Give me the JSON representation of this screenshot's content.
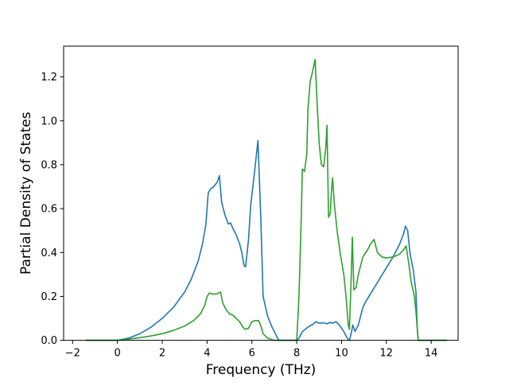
{
  "chart_data": {
    "type": "line",
    "title": "",
    "xlabel": "Frequency (THz)",
    "ylabel": "Partial Density of States",
    "xlim": [
      -2.4,
      15.2
    ],
    "ylim": [
      0,
      1.34
    ],
    "xticks": [
      -2,
      0,
      2,
      4,
      6,
      8,
      10,
      12,
      14
    ],
    "yticks": [
      0.0,
      0.2,
      0.4,
      0.6,
      0.8,
      1.0,
      1.2
    ],
    "xtick_labels": [
      "−2",
      "0",
      "2",
      "4",
      "6",
      "8",
      "10",
      "12",
      "14"
    ],
    "ytick_labels": [
      "0.0",
      "0.2",
      "0.4",
      "0.6",
      "0.8",
      "1.0",
      "1.2"
    ],
    "grid": false,
    "legend": "none",
    "series": [
      {
        "color": "#1f77b4",
        "points": [
          [
            -1.4,
            0
          ],
          [
            0.0,
            0
          ],
          [
            0.5,
            0.01
          ],
          [
            1.0,
            0.03
          ],
          [
            1.5,
            0.06
          ],
          [
            2.0,
            0.1
          ],
          [
            2.5,
            0.15
          ],
          [
            3.0,
            0.22
          ],
          [
            3.3,
            0.28
          ],
          [
            3.6,
            0.36
          ],
          [
            3.8,
            0.44
          ],
          [
            3.95,
            0.53
          ],
          [
            4.05,
            0.67
          ],
          [
            4.15,
            0.69
          ],
          [
            4.3,
            0.7
          ],
          [
            4.45,
            0.72
          ],
          [
            4.55,
            0.75
          ],
          [
            4.65,
            0.63
          ],
          [
            4.8,
            0.57
          ],
          [
            4.95,
            0.53
          ],
          [
            5.05,
            0.535
          ],
          [
            5.15,
            0.51
          ],
          [
            5.3,
            0.48
          ],
          [
            5.45,
            0.44
          ],
          [
            5.55,
            0.4
          ],
          [
            5.65,
            0.34
          ],
          [
            5.72,
            0.335
          ],
          [
            5.85,
            0.46
          ],
          [
            5.95,
            0.62
          ],
          [
            6.1,
            0.75
          ],
          [
            6.27,
            0.91
          ],
          [
            6.4,
            0.55
          ],
          [
            6.5,
            0.2
          ],
          [
            6.7,
            0.11
          ],
          [
            6.9,
            0.06
          ],
          [
            7.1,
            0.02
          ],
          [
            7.2,
            0
          ],
          [
            8.0,
            0
          ],
          [
            8.1,
            0.01
          ],
          [
            8.25,
            0.04
          ],
          [
            8.5,
            0.06
          ],
          [
            8.75,
            0.075
          ],
          [
            8.85,
            0.085
          ],
          [
            9.0,
            0.078
          ],
          [
            9.2,
            0.08
          ],
          [
            9.35,
            0.075
          ],
          [
            9.5,
            0.082
          ],
          [
            9.6,
            0.078
          ],
          [
            9.75,
            0.085
          ],
          [
            9.9,
            0.07
          ],
          [
            10.1,
            0.04
          ],
          [
            10.25,
            0.01
          ],
          [
            10.35,
            0.0
          ],
          [
            10.45,
            0.04
          ],
          [
            10.5,
            0.07
          ],
          [
            10.6,
            0.04
          ],
          [
            10.75,
            0.07
          ],
          [
            10.95,
            0.15
          ],
          [
            11.1,
            0.18
          ],
          [
            11.4,
            0.23
          ],
          [
            11.7,
            0.28
          ],
          [
            12.0,
            0.33
          ],
          [
            12.3,
            0.38
          ],
          [
            12.6,
            0.44
          ],
          [
            12.78,
            0.49
          ],
          [
            12.85,
            0.52
          ],
          [
            12.95,
            0.5
          ],
          [
            13.05,
            0.4
          ],
          [
            13.2,
            0.32
          ],
          [
            13.32,
            0.22
          ],
          [
            13.38,
            0.05
          ],
          [
            13.42,
            0
          ],
          [
            14.7,
            0
          ]
        ]
      },
      {
        "color": "#2ca02c",
        "points": [
          [
            -1.4,
            0
          ],
          [
            0.0,
            0
          ],
          [
            0.5,
            0.005
          ],
          [
            1.0,
            0.012
          ],
          [
            1.5,
            0.02
          ],
          [
            2.0,
            0.03
          ],
          [
            2.5,
            0.045
          ],
          [
            3.0,
            0.065
          ],
          [
            3.4,
            0.09
          ],
          [
            3.7,
            0.12
          ],
          [
            3.9,
            0.16
          ],
          [
            4.0,
            0.2
          ],
          [
            4.1,
            0.215
          ],
          [
            4.3,
            0.21
          ],
          [
            4.45,
            0.212
          ],
          [
            4.6,
            0.22
          ],
          [
            4.7,
            0.17
          ],
          [
            4.85,
            0.14
          ],
          [
            5.0,
            0.12
          ],
          [
            5.15,
            0.115
          ],
          [
            5.3,
            0.1
          ],
          [
            5.45,
            0.085
          ],
          [
            5.6,
            0.06
          ],
          [
            5.7,
            0.05
          ],
          [
            5.85,
            0.055
          ],
          [
            6.0,
            0.085
          ],
          [
            6.15,
            0.09
          ],
          [
            6.3,
            0.09
          ],
          [
            6.4,
            0.065
          ],
          [
            6.5,
            0.03
          ],
          [
            6.7,
            0.01
          ],
          [
            7.0,
            0
          ],
          [
            8.0,
            0
          ],
          [
            8.1,
            0.2
          ],
          [
            8.2,
            0.55
          ],
          [
            8.25,
            0.78
          ],
          [
            8.35,
            0.77
          ],
          [
            8.45,
            0.85
          ],
          [
            8.5,
            1.05
          ],
          [
            8.6,
            1.18
          ],
          [
            8.7,
            1.22
          ],
          [
            8.82,
            1.28
          ],
          [
            8.9,
            1.1
          ],
          [
            9.0,
            0.9
          ],
          [
            9.1,
            0.8
          ],
          [
            9.2,
            0.79
          ],
          [
            9.3,
            0.88
          ],
          [
            9.35,
            0.98
          ],
          [
            9.42,
            0.56
          ],
          [
            9.5,
            0.58
          ],
          [
            9.55,
            0.68
          ],
          [
            9.6,
            0.74
          ],
          [
            9.68,
            0.62
          ],
          [
            9.8,
            0.5
          ],
          [
            9.95,
            0.39
          ],
          [
            10.1,
            0.3
          ],
          [
            10.2,
            0.2
          ],
          [
            10.3,
            0.07
          ],
          [
            10.35,
            0.05
          ],
          [
            10.42,
            0.25
          ],
          [
            10.48,
            0.47
          ],
          [
            10.55,
            0.23
          ],
          [
            10.65,
            0.24
          ],
          [
            10.75,
            0.3
          ],
          [
            10.95,
            0.38
          ],
          [
            11.15,
            0.41
          ],
          [
            11.3,
            0.44
          ],
          [
            11.45,
            0.46
          ],
          [
            11.6,
            0.4
          ],
          [
            11.8,
            0.38
          ],
          [
            12.0,
            0.375
          ],
          [
            12.3,
            0.38
          ],
          [
            12.55,
            0.39
          ],
          [
            12.75,
            0.41
          ],
          [
            12.88,
            0.43
          ],
          [
            13.0,
            0.35
          ],
          [
            13.1,
            0.27
          ],
          [
            13.25,
            0.2
          ],
          [
            13.32,
            0.13
          ],
          [
            13.38,
            0.05
          ],
          [
            13.42,
            0
          ],
          [
            14.7,
            0
          ]
        ]
      }
    ]
  }
}
